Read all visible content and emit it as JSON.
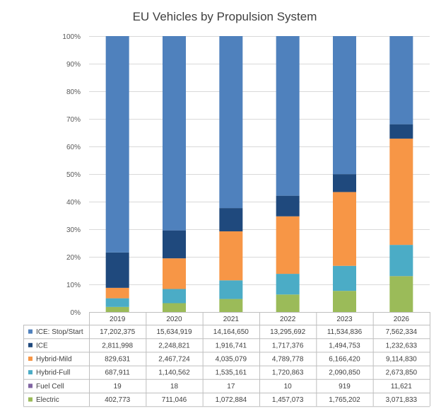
{
  "chart_data": {
    "type": "bar",
    "stacked": "percent",
    "title": "EU Vehicles by Propulsion System",
    "categories": [
      "2019",
      "2020",
      "2021",
      "2022",
      "2023",
      "2026"
    ],
    "y_ticks": [
      "0%",
      "10%",
      "20%",
      "30%",
      "40%",
      "50%",
      "60%",
      "70%",
      "80%",
      "90%",
      "100%"
    ],
    "ylim": [
      0,
      100
    ],
    "legend_placement": "data-table",
    "series": [
      {
        "name": "Electric",
        "color": "#9BBB59",
        "labels": [
          "402,773",
          "711,046",
          "1,072,884",
          "1,457,073",
          "1,765,202",
          "3,071,833"
        ],
        "values": [
          402773,
          711046,
          1072884,
          1457073,
          1765202,
          3071833
        ]
      },
      {
        "name": "Fuel Cell",
        "color": "#8064A2",
        "labels": [
          "19",
          "18",
          "17",
          "10",
          "919",
          "11,621"
        ],
        "values": [
          19,
          18,
          17,
          10,
          919,
          11621
        ]
      },
      {
        "name": "Hybrid-Full",
        "color": "#4BACC6",
        "labels": [
          "687,911",
          "1,140,562",
          "1,535,161",
          "1,720,863",
          "2,090,850",
          "2,673,850"
        ],
        "values": [
          687911,
          1140562,
          1535161,
          1720863,
          2090850,
          2673850
        ]
      },
      {
        "name": "Hybrid-Mild",
        "color": "#F79646",
        "labels": [
          "829,631",
          "2,467,724",
          "4,035,079",
          "4,789,778",
          "6,166,420",
          "9,114,830"
        ],
        "values": [
          829631,
          2467724,
          4035079,
          4789778,
          6166420,
          9114830
        ]
      },
      {
        "name": "ICE",
        "color": "#1F497D",
        "labels": [
          "2,811,998",
          "2,248,821",
          "1,916,741",
          "1,717,376",
          "1,494,753",
          "1,232,633"
        ],
        "values": [
          2811998,
          2248821,
          1916741,
          1717376,
          1494753,
          1232633
        ]
      },
      {
        "name": "ICE: Stop/Start",
        "color": "#4F81BD",
        "labels": [
          "17,202,375",
          "15,634,919",
          "14,164,650",
          "13,295,692",
          "11,534,836",
          "7,562,334"
        ],
        "values": [
          17202375,
          15634919,
          14164650,
          13295692,
          11534836,
          7562334
        ]
      }
    ],
    "table_row_order": [
      "ICE: Stop/Start",
      "ICE",
      "Hybrid-Mild",
      "Hybrid-Full",
      "Fuel Cell",
      "Electric"
    ]
  }
}
